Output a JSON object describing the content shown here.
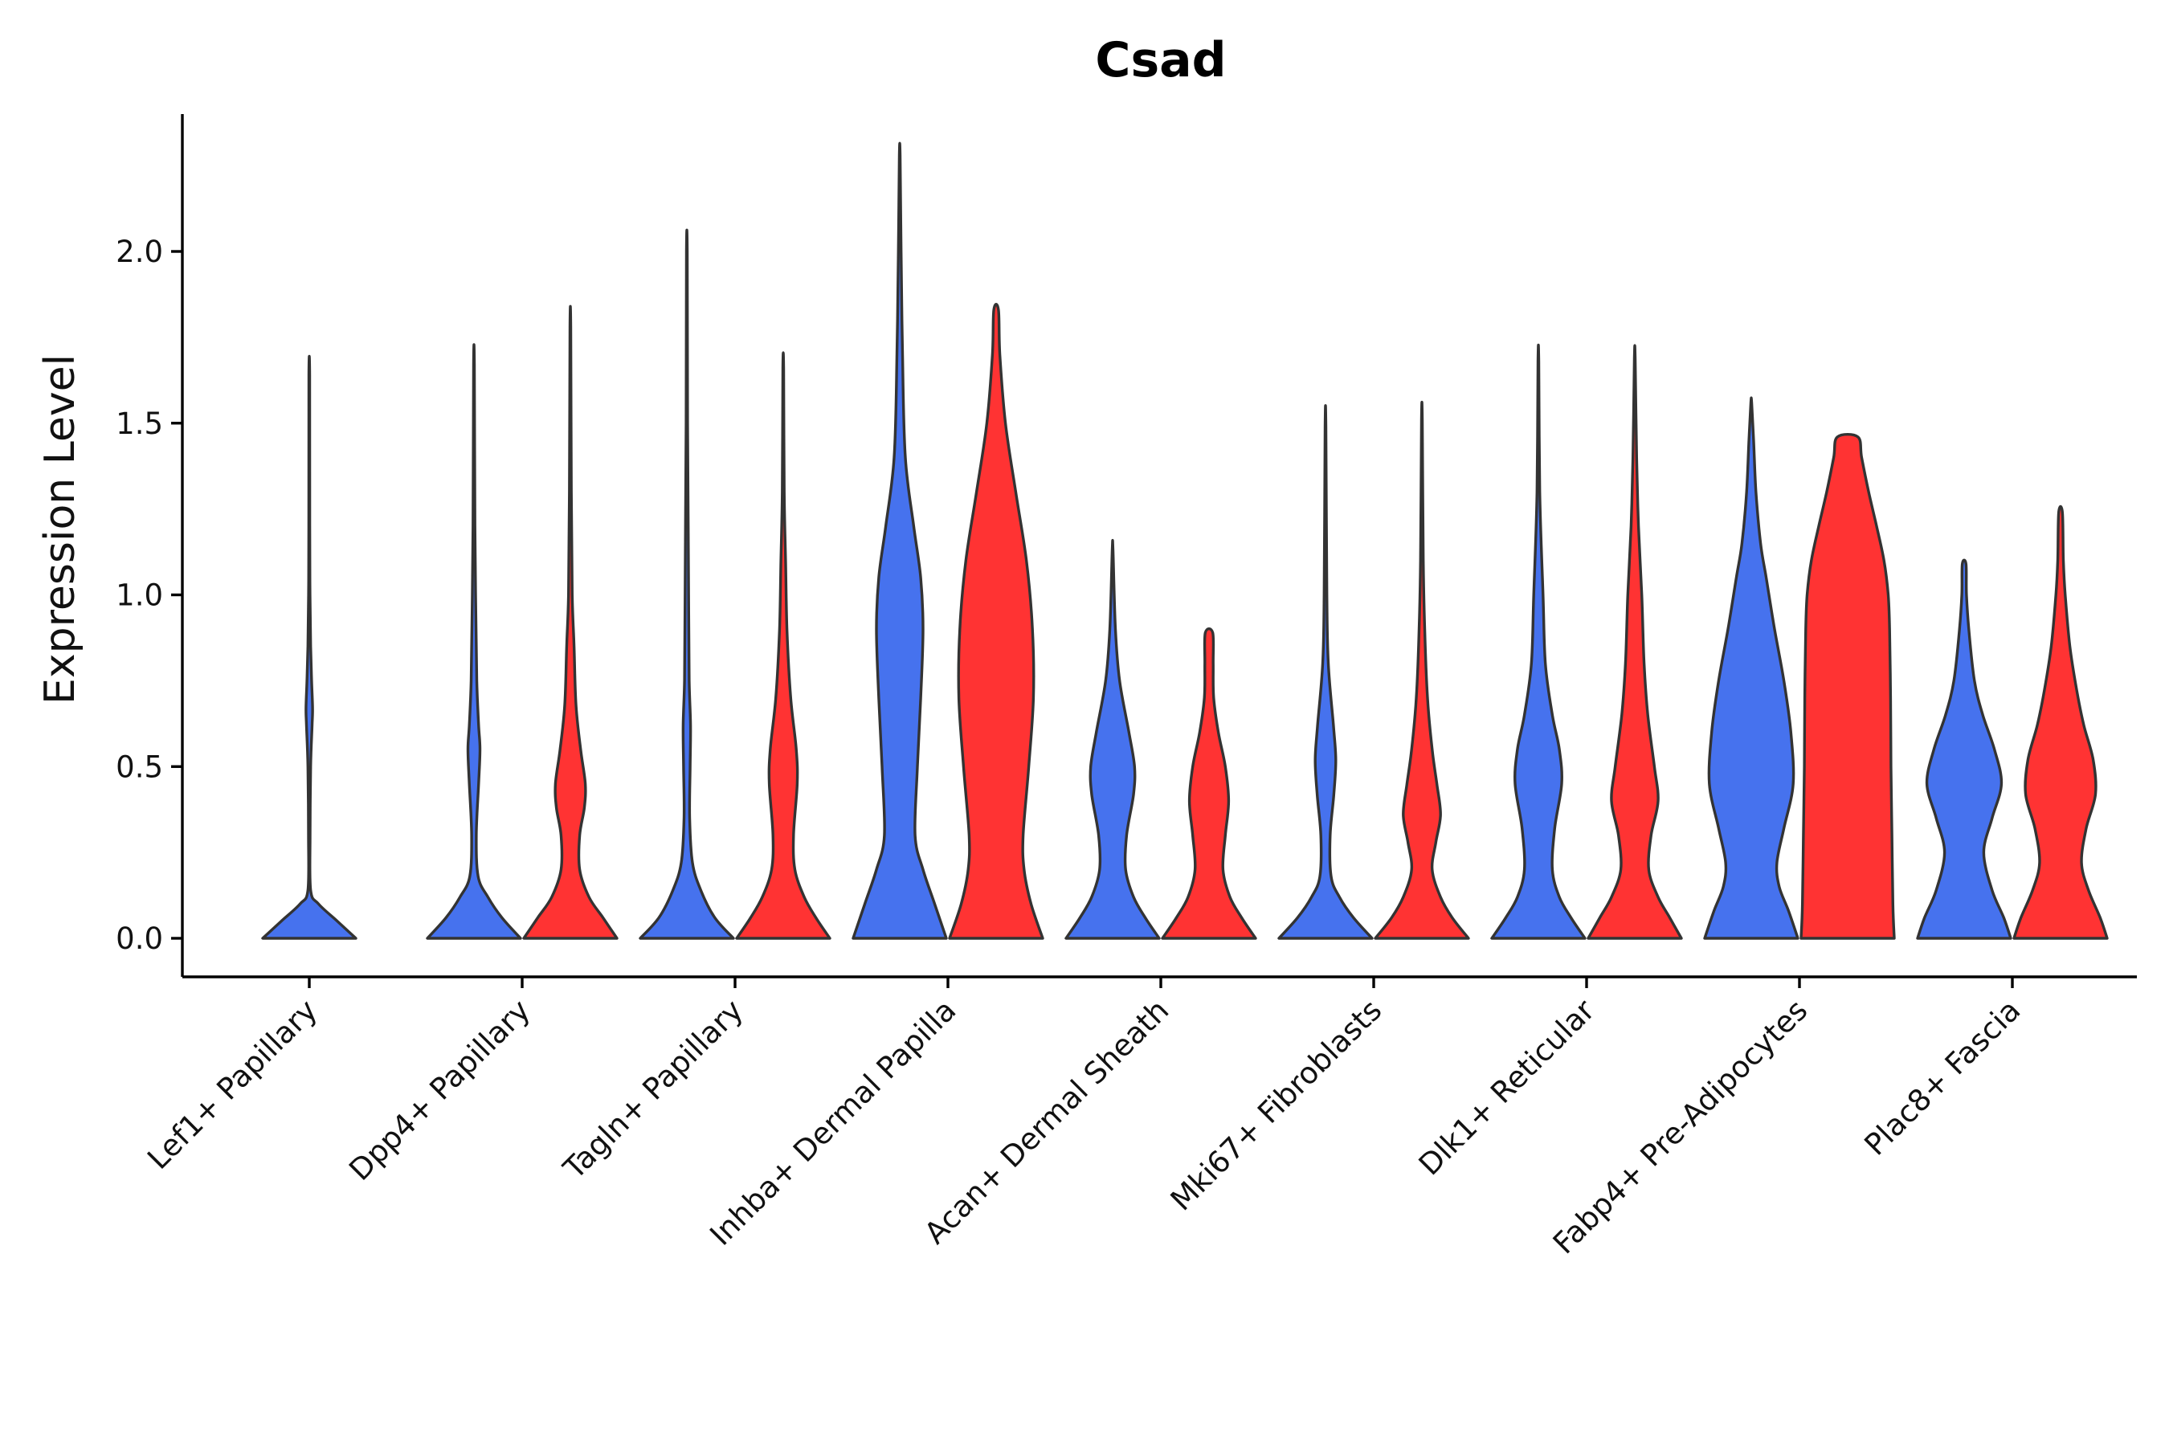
{
  "chart_data": {
    "type": "violin",
    "title": "Csad",
    "xlabel": "",
    "ylabel": "Expression Level",
    "ylim": [
      -0.12,
      2.4
    ],
    "yticks": [
      "0.0",
      "0.5",
      "1.0",
      "1.5",
      "2.0"
    ],
    "categories": [
      "Lef1+ Papillary",
      "Dpp4+ Papillary",
      "Tagln+ Papillary",
      "Inhba+ Dermal Papilla",
      "Acan+ Dermal Sheath",
      "Mki67+ Fibroblasts",
      "Dlk1+ Reticular",
      "Fabp4+ Pre-Adipocytes",
      "Plac8+ Fascia"
    ],
    "colors": {
      "group1": "#4672EE",
      "group2": "#FF3333"
    },
    "series": [
      {
        "name": "group1",
        "color": "#4672EE",
        "violins": [
          {
            "max": 1.64,
            "profile": [
              [
                0,
                1.0
              ],
              [
                0.05,
                0.6
              ],
              [
                0.1,
                0.2
              ],
              [
                0.14,
                0.03
              ],
              [
                0.3,
                0.018
              ],
              [
                0.5,
                0.03
              ],
              [
                0.62,
                0.06
              ],
              [
                0.67,
                0.07
              ],
              [
                0.75,
                0.05
              ],
              [
                0.85,
                0.03
              ],
              [
                1.0,
                0.015
              ],
              [
                1.2,
                0.01
              ],
              [
                1.64,
                0.003
              ]
            ]
          },
          {
            "max": 1.67,
            "profile": [
              [
                0,
                1.0
              ],
              [
                0.06,
                0.6
              ],
              [
                0.12,
                0.3
              ],
              [
                0.18,
                0.09
              ],
              [
                0.3,
                0.05
              ],
              [
                0.45,
                0.1
              ],
              [
                0.55,
                0.13
              ],
              [
                0.62,
                0.1
              ],
              [
                0.75,
                0.06
              ],
              [
                0.95,
                0.04
              ],
              [
                1.2,
                0.02
              ],
              [
                1.67,
                0.003
              ]
            ]
          },
          {
            "max": 2.0,
            "profile": [
              [
                0,
                1.0
              ],
              [
                0.06,
                0.6
              ],
              [
                0.14,
                0.3
              ],
              [
                0.22,
                0.12
              ],
              [
                0.35,
                0.06
              ],
              [
                0.5,
                0.07
              ],
              [
                0.62,
                0.08
              ],
              [
                0.75,
                0.05
              ],
              [
                0.95,
                0.04
              ],
              [
                1.2,
                0.03
              ],
              [
                1.5,
                0.015
              ],
              [
                2.0,
                0.003
              ]
            ]
          },
          {
            "max": 2.28,
            "profile": [
              [
                0,
                1.0
              ],
              [
                0.1,
                0.75
              ],
              [
                0.2,
                0.5
              ],
              [
                0.3,
                0.33
              ],
              [
                0.5,
                0.38
              ],
              [
                0.7,
                0.45
              ],
              [
                0.9,
                0.5
              ],
              [
                1.05,
                0.45
              ],
              [
                1.2,
                0.3
              ],
              [
                1.4,
                0.12
              ],
              [
                1.7,
                0.06
              ],
              [
                2.0,
                0.03
              ],
              [
                2.28,
                0.003
              ]
            ]
          },
          {
            "max": 1.13,
            "profile": [
              [
                0,
                1.0
              ],
              [
                0.06,
                0.7
              ],
              [
                0.12,
                0.45
              ],
              [
                0.2,
                0.28
              ],
              [
                0.3,
                0.3
              ],
              [
                0.42,
                0.45
              ],
              [
                0.5,
                0.47
              ],
              [
                0.6,
                0.35
              ],
              [
                0.75,
                0.15
              ],
              [
                0.9,
                0.06
              ],
              [
                1.13,
                0.003
              ]
            ]
          },
          {
            "max": 1.49,
            "profile": [
              [
                0,
                1.0
              ],
              [
                0.06,
                0.6
              ],
              [
                0.12,
                0.3
              ],
              [
                0.18,
                0.12
              ],
              [
                0.3,
                0.1
              ],
              [
                0.42,
                0.18
              ],
              [
                0.52,
                0.22
              ],
              [
                0.62,
                0.17
              ],
              [
                0.8,
                0.06
              ],
              [
                1.0,
                0.03
              ],
              [
                1.49,
                0.003
              ]
            ]
          },
          {
            "max": 1.68,
            "profile": [
              [
                0,
                1.0
              ],
              [
                0.06,
                0.7
              ],
              [
                0.12,
                0.45
              ],
              [
                0.2,
                0.3
              ],
              [
                0.32,
                0.35
              ],
              [
                0.45,
                0.5
              ],
              [
                0.55,
                0.45
              ],
              [
                0.65,
                0.3
              ],
              [
                0.8,
                0.15
              ],
              [
                1.0,
                0.1
              ],
              [
                1.3,
                0.03
              ],
              [
                1.68,
                0.003
              ]
            ]
          },
          {
            "max": 1.56,
            "profile": [
              [
                0,
                1.0
              ],
              [
                0.08,
                0.8
              ],
              [
                0.15,
                0.6
              ],
              [
                0.22,
                0.55
              ],
              [
                0.32,
                0.7
              ],
              [
                0.45,
                0.9
              ],
              [
                0.6,
                0.85
              ],
              [
                0.75,
                0.7
              ],
              [
                0.9,
                0.5
              ],
              [
                1.05,
                0.32
              ],
              [
                1.15,
                0.2
              ],
              [
                1.3,
                0.1
              ],
              [
                1.45,
                0.05
              ],
              [
                1.56,
                0.003
              ]
            ]
          },
          {
            "max": 1.09,
            "profile": [
              [
                0,
                1.0
              ],
              [
                0.06,
                0.85
              ],
              [
                0.14,
                0.6
              ],
              [
                0.25,
                0.42
              ],
              [
                0.35,
                0.6
              ],
              [
                0.45,
                0.8
              ],
              [
                0.55,
                0.65
              ],
              [
                0.65,
                0.4
              ],
              [
                0.75,
                0.22
              ],
              [
                0.9,
                0.1
              ],
              [
                1.0,
                0.05
              ],
              [
                1.09,
                0.04
              ]
            ]
          }
        ]
      },
      {
        "name": "group2",
        "color": "#FF3333",
        "violins": [
          null,
          {
            "max": 1.78,
            "profile": [
              [
                0,
                1.0
              ],
              [
                0.06,
                0.7
              ],
              [
                0.12,
                0.4
              ],
              [
                0.2,
                0.2
              ],
              [
                0.3,
                0.2
              ],
              [
                0.38,
                0.3
              ],
              [
                0.45,
                0.32
              ],
              [
                0.55,
                0.22
              ],
              [
                0.68,
                0.12
              ],
              [
                0.85,
                0.08
              ],
              [
                1.0,
                0.04
              ],
              [
                1.3,
                0.02
              ],
              [
                1.78,
                0.003
              ]
            ]
          },
          {
            "max": 1.66,
            "profile": [
              [
                0,
                1.0
              ],
              [
                0.06,
                0.7
              ],
              [
                0.12,
                0.45
              ],
              [
                0.2,
                0.25
              ],
              [
                0.3,
                0.22
              ],
              [
                0.45,
                0.3
              ],
              [
                0.55,
                0.28
              ],
              [
                0.7,
                0.16
              ],
              [
                0.9,
                0.08
              ],
              [
                1.1,
                0.05
              ],
              [
                1.3,
                0.02
              ],
              [
                1.66,
                0.003
              ]
            ]
          },
          {
            "max": 1.83,
            "profile": [
              [
                0,
                1.0
              ],
              [
                0.1,
                0.75
              ],
              [
                0.2,
                0.6
              ],
              [
                0.3,
                0.58
              ],
              [
                0.5,
                0.7
              ],
              [
                0.7,
                0.8
              ],
              [
                0.9,
                0.78
              ],
              [
                1.1,
                0.65
              ],
              [
                1.3,
                0.42
              ],
              [
                1.5,
                0.2
              ],
              [
                1.7,
                0.08
              ],
              [
                1.83,
                0.05
              ]
            ]
          },
          {
            "max": 0.89,
            "profile": [
              [
                0,
                1.0
              ],
              [
                0.06,
                0.7
              ],
              [
                0.12,
                0.45
              ],
              [
                0.2,
                0.3
              ],
              [
                0.3,
                0.35
              ],
              [
                0.4,
                0.42
              ],
              [
                0.5,
                0.35
              ],
              [
                0.6,
                0.2
              ],
              [
                0.7,
                0.1
              ],
              [
                0.8,
                0.09
              ],
              [
                0.89,
                0.08
              ]
            ]
          },
          {
            "max": 1.51,
            "profile": [
              [
                0,
                1.0
              ],
              [
                0.06,
                0.65
              ],
              [
                0.12,
                0.4
              ],
              [
                0.2,
                0.22
              ],
              [
                0.28,
                0.3
              ],
              [
                0.36,
                0.4
              ],
              [
                0.45,
                0.32
              ],
              [
                0.55,
                0.22
              ],
              [
                0.7,
                0.12
              ],
              [
                0.9,
                0.06
              ],
              [
                1.1,
                0.03
              ],
              [
                1.51,
                0.003
              ]
            ]
          },
          {
            "max": 1.69,
            "profile": [
              [
                0,
                1.0
              ],
              [
                0.06,
                0.75
              ],
              [
                0.12,
                0.5
              ],
              [
                0.2,
                0.3
              ],
              [
                0.3,
                0.35
              ],
              [
                0.4,
                0.5
              ],
              [
                0.5,
                0.42
              ],
              [
                0.65,
                0.28
              ],
              [
                0.8,
                0.2
              ],
              [
                1.0,
                0.15
              ],
              [
                1.2,
                0.08
              ],
              [
                1.4,
                0.04
              ],
              [
                1.69,
                0.003
              ]
            ]
          },
          {
            "max": 1.46,
            "profile": [
              [
                0,
                1.0
              ],
              [
                0.1,
                0.97
              ],
              [
                0.3,
                0.95
              ],
              [
                0.5,
                0.93
              ],
              [
                0.7,
                0.92
              ],
              [
                0.9,
                0.9
              ],
              [
                1.0,
                0.87
              ],
              [
                1.1,
                0.78
              ],
              [
                1.2,
                0.62
              ],
              [
                1.3,
                0.45
              ],
              [
                1.4,
                0.3
              ],
              [
                1.46,
                0.22
              ]
            ]
          },
          {
            "max": 1.24,
            "profile": [
              [
                0,
                1.0
              ],
              [
                0.06,
                0.85
              ],
              [
                0.14,
                0.6
              ],
              [
                0.22,
                0.45
              ],
              [
                0.32,
                0.55
              ],
              [
                0.42,
                0.75
              ],
              [
                0.52,
                0.7
              ],
              [
                0.62,
                0.5
              ],
              [
                0.72,
                0.35
              ],
              [
                0.85,
                0.2
              ],
              [
                1.0,
                0.1
              ],
              [
                1.1,
                0.06
              ],
              [
                1.24,
                0.04
              ]
            ]
          }
        ]
      }
    ]
  }
}
